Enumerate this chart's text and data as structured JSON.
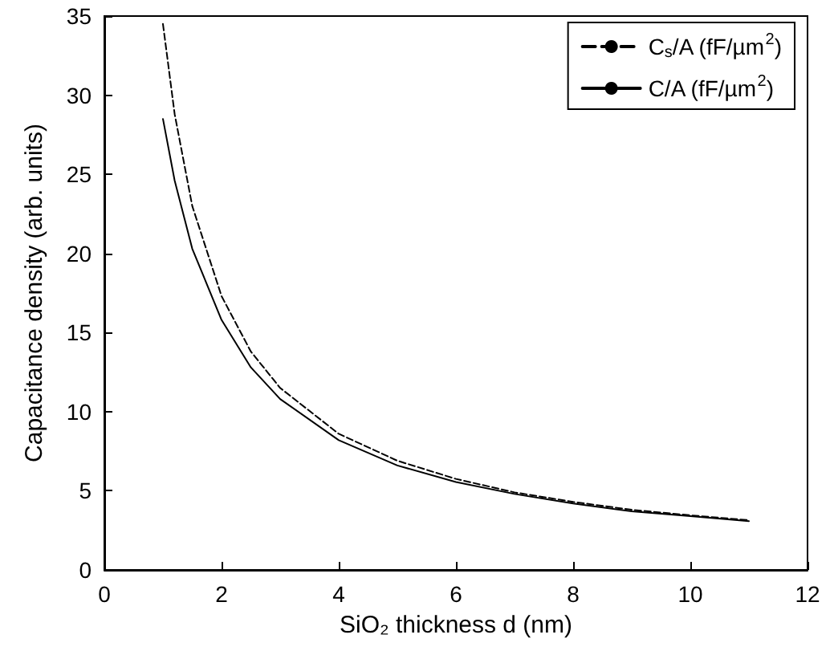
{
  "chart_data": {
    "type": "line",
    "xlabel": "SiO₂ thickness d (nm)",
    "ylabel": "Capacitance density (arb. units)",
    "xlim": [
      0,
      12
    ],
    "xticks": [
      0,
      2,
      4,
      6,
      8,
      10,
      12
    ],
    "ylim": [
      0,
      35
    ],
    "yticks": [
      0,
      5,
      10,
      15,
      20,
      25,
      30,
      35
    ],
    "grid": false,
    "legend": "top right",
    "marker": "none",
    "series": [
      {
        "name": "C$_{s}$/A (fF/µm$^{2}$)",
        "color": "#000000",
        "line_style": "dashed",
        "x": [
          1,
          1.2,
          1.5,
          2,
          2.5,
          3,
          4,
          5,
          6,
          7,
          8,
          9,
          10,
          11
        ],
        "values": [
          34.5,
          28.8,
          23,
          17.3,
          13.8,
          11.5,
          8.6,
          6.9,
          5.75,
          4.9,
          4.3,
          3.8,
          3.45,
          3.14
        ]
      },
      {
        "name": "C/A (fF/µm$^{2}$)",
        "color": "#000000",
        "line_style": "solid",
        "x": [
          1,
          1.2,
          1.5,
          2,
          2.5,
          3,
          4,
          5,
          6,
          7,
          8,
          9,
          10,
          11
        ],
        "values": [
          28.5,
          24.6,
          20.3,
          15.8,
          12.8,
          10.8,
          8.2,
          6.6,
          5.55,
          4.8,
          4.2,
          3.7,
          3.4,
          3.08
        ]
      }
    ]
  }
}
